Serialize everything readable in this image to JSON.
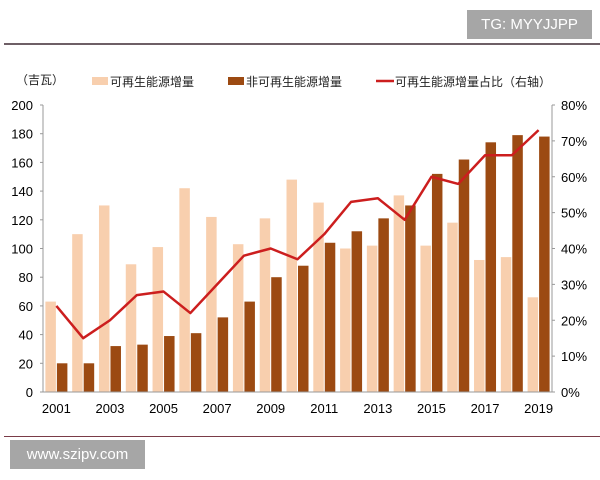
{
  "header": {
    "badge": "TG: MYYJJPP"
  },
  "footer": {
    "watermark": "www.szipv.com"
  },
  "colors": {
    "renewable": "#f8cfae",
    "nonrenewable": "#9c4a12",
    "share_line": "#cc1e1e",
    "axis": "#999999"
  },
  "chart_data": {
    "type": "bar",
    "unit_label": "（吉瓦）",
    "x": [
      2001,
      2002,
      2003,
      2004,
      2005,
      2006,
      2007,
      2008,
      2009,
      2010,
      2011,
      2012,
      2013,
      2014,
      2015,
      2016,
      2017,
      2018,
      2019
    ],
    "x_tick_labels": [
      "2001",
      "2003",
      "2005",
      "2007",
      "2009",
      "2011",
      "2013",
      "2015",
      "2017",
      "2019"
    ],
    "series": [
      {
        "name": "可再生能源增量",
        "type": "bar",
        "axis": "left",
        "values": [
          63,
          110,
          130,
          89,
          101,
          142,
          122,
          103,
          121,
          148,
          132,
          100,
          102,
          137,
          102,
          118,
          92,
          94,
          66
        ]
      },
      {
        "name": "非可再生能源增量",
        "type": "bar",
        "axis": "left",
        "values": [
          20,
          20,
          32,
          33,
          39,
          41,
          52,
          63,
          80,
          88,
          104,
          112,
          121,
          130,
          152,
          162,
          174,
          179,
          178
        ]
      },
      {
        "name": "可再生能源增量占比（右轴）",
        "type": "line",
        "axis": "right",
        "values": [
          24,
          15,
          20,
          27,
          28,
          22,
          30,
          38,
          40,
          37,
          44,
          53,
          54,
          48,
          60,
          58,
          66,
          66,
          73
        ]
      }
    ],
    "ylim": [
      0,
      200
    ],
    "y_ticks": [
      "0",
      "20",
      "40",
      "60",
      "80",
      "100",
      "120",
      "140",
      "160",
      "180",
      "200"
    ],
    "y2lim": [
      0,
      80
    ],
    "y2_ticks": [
      "0%",
      "10%",
      "20%",
      "30%",
      "40%",
      "50%",
      "60%",
      "70%",
      "80%"
    ],
    "grid": false,
    "legend_placement": "top"
  }
}
